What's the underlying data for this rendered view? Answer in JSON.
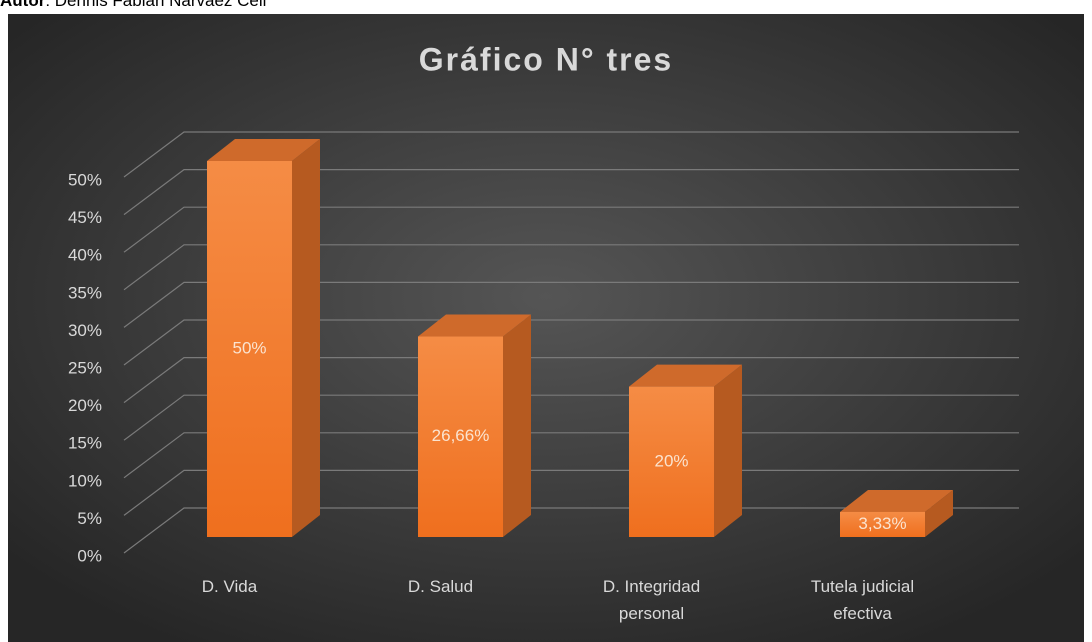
{
  "author_label": "Autor",
  "author_name": ": Dennis Fabián Narváez Celi",
  "chart_data": {
    "type": "bar3d",
    "title": "Gráfico N° tres",
    "categories": [
      "D. Vida",
      "D. Salud",
      "D. Integridad personal",
      "Tutela judicial efectiva"
    ],
    "values": [
      50,
      26.66,
      20,
      3.33
    ],
    "value_labels": [
      "50%",
      "26,66%",
      "20%",
      "3,33%"
    ],
    "color": "#f07a2c",
    "ylim": [
      0,
      50
    ],
    "yticks": [
      {
        "value": 0,
        "label": "0%"
      },
      {
        "value": 5,
        "label": "5%"
      },
      {
        "value": 10,
        "label": "10%"
      },
      {
        "value": 15,
        "label": "15%"
      },
      {
        "value": 20,
        "label": "20%"
      },
      {
        "value": 25,
        "label": "25%"
      },
      {
        "value": 30,
        "label": "30%"
      },
      {
        "value": 35,
        "label": "35%"
      },
      {
        "value": 40,
        "label": "40%"
      },
      {
        "value": 45,
        "label": "45%"
      },
      {
        "value": 50,
        "label": "50%"
      }
    ],
    "grid": true
  }
}
